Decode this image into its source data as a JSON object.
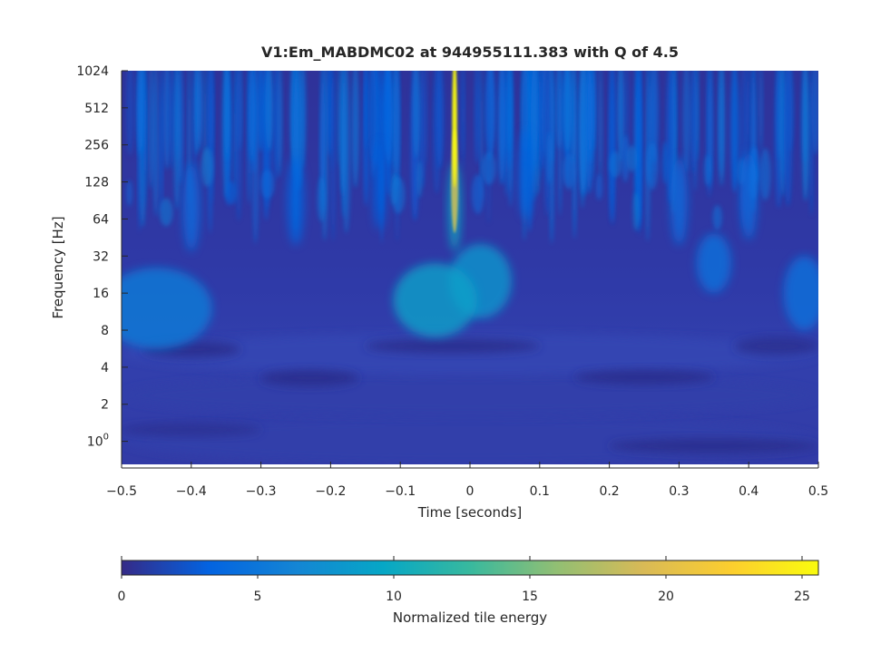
{
  "chart_data": {
    "type": "heatmap",
    "title": "V1:Em_MABDMC02 at 944955111.383 with Q of 4.5",
    "xlabel": "Time [seconds]",
    "ylabel": "Frequency [Hz]",
    "xlim": [
      -0.5,
      0.5
    ],
    "ylim": [
      0.65,
      1024
    ],
    "y_scale": "log2",
    "x_ticks": [
      {
        "value": -0.5,
        "label": "−0.5"
      },
      {
        "value": -0.4,
        "label": "−0.4"
      },
      {
        "value": -0.3,
        "label": "−0.3"
      },
      {
        "value": -0.2,
        "label": "−0.2"
      },
      {
        "value": -0.1,
        "label": "−0.1"
      },
      {
        "value": 0,
        "label": "0"
      },
      {
        "value": 0.1,
        "label": "0.1"
      },
      {
        "value": 0.2,
        "label": "0.2"
      },
      {
        "value": 0.3,
        "label": "0.3"
      },
      {
        "value": 0.4,
        "label": "0.4"
      },
      {
        "value": 0.5,
        "label": "0.5"
      }
    ],
    "y_ticks": [
      {
        "value": 1,
        "base": "10",
        "exponent": "0"
      },
      {
        "value": 2,
        "label": "2"
      },
      {
        "value": 4,
        "label": "4"
      },
      {
        "value": 8,
        "label": "8"
      },
      {
        "value": 16,
        "label": "16"
      },
      {
        "value": 32,
        "label": "32"
      },
      {
        "value": 64,
        "label": "64"
      },
      {
        "value": 128,
        "label": "128"
      },
      {
        "value": 256,
        "label": "256"
      },
      {
        "value": 512,
        "label": "512"
      },
      {
        "value": 1024,
        "label": "1024"
      }
    ],
    "colorbar": {
      "label": "Normalized tile energy",
      "range": [
        0,
        25.6
      ],
      "ticks": [
        0,
        5,
        10,
        15,
        20,
        25
      ],
      "colormap": [
        "#352a87",
        "#0363e1",
        "#1485d4",
        "#06a7c6",
        "#38b99e",
        "#92bf73",
        "#d9ba56",
        "#fcce2e",
        "#f9fb0e"
      ]
    },
    "background_color": "#2f3299",
    "features": [
      {
        "t": -0.022,
        "f": 400,
        "energy": 25.6,
        "dt": 0.0035,
        "dlogf": 0.9
      },
      {
        "t": -0.022,
        "f": 130,
        "energy": 18,
        "dt": 0.005,
        "dlogf": 0.7
      },
      {
        "t": -0.022,
        "f": 80,
        "energy": 10,
        "dt": 0.009,
        "dlogf": 0.6
      },
      {
        "t": 0.015,
        "f": 20,
        "energy": 8,
        "dt": 0.045,
        "dlogf": 0.5
      },
      {
        "t": -0.05,
        "f": 14,
        "energy": 9,
        "dt": 0.06,
        "dlogf": 0.5
      },
      {
        "t": -0.45,
        "f": 12,
        "energy": 5.5,
        "dt": 0.08,
        "dlogf": 0.55
      },
      {
        "t": 0.35,
        "f": 28,
        "energy": 4.5,
        "dt": 0.025,
        "dlogf": 0.4
      },
      {
        "t": 0.48,
        "f": 16,
        "energy": 4.5,
        "dt": 0.03,
        "dlogf": 0.5
      },
      {
        "t": -0.4,
        "f": 80,
        "energy": 4,
        "dt": 0.012,
        "dlogf": 0.6
      },
      {
        "t": 0.3,
        "f": 90,
        "energy": 4,
        "dt": 0.012,
        "dlogf": 0.6
      },
      {
        "t": 0.4,
        "f": 100,
        "energy": 4,
        "dt": 0.012,
        "dlogf": 0.6
      },
      {
        "t": -0.25,
        "f": 90,
        "energy": 3.5,
        "dt": 0.012,
        "dlogf": 0.6
      },
      {
        "t": 0.08,
        "f": 150,
        "energy": 3.5,
        "dt": 0.01,
        "dlogf": 0.6
      },
      {
        "t": -0.13,
        "f": 120,
        "energy": 3,
        "dt": 0.01,
        "dlogf": 0.6
      }
    ]
  }
}
